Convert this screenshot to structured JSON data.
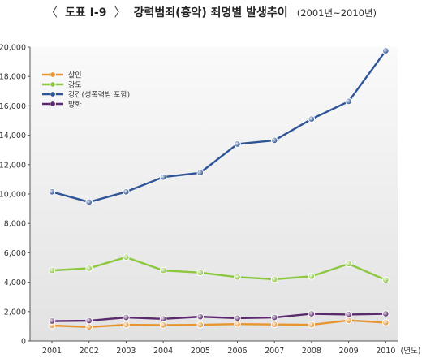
{
  "header": {
    "bracket_open": "〈",
    "figure_no": "도표 Ⅰ-9",
    "bracket_close": "〉",
    "title": "강력범죄(흉악) 죄명별 발생추이",
    "subtitle": "(2001년~2010년)"
  },
  "chart_data": {
    "type": "line",
    "title": "강력범죄(흉악) 죄명별 발생추이",
    "subtitle": "(2001년~2010년)",
    "xlabel": "(연도)",
    "ylabel": "",
    "x": [
      "2001",
      "2002",
      "2003",
      "2004",
      "2005",
      "2006",
      "2007",
      "2008",
      "2009",
      "2010"
    ],
    "ylim": [
      0,
      20000
    ],
    "yticks": [
      "0",
      "2,000",
      "4,000",
      "6,000",
      "8,000",
      "10,000",
      "12,000",
      "14,000",
      "16,000",
      "18,000",
      "20,000"
    ],
    "grid": false,
    "legend_position": "top-left",
    "series": [
      {
        "name": "살인",
        "color": "#E8952F",
        "values": [
          1050,
          950,
          1100,
          1080,
          1100,
          1150,
          1120,
          1100,
          1400,
          1250
        ]
      },
      {
        "name": "강도",
        "color": "#8DC63F",
        "values": [
          4800,
          4950,
          5700,
          4800,
          4650,
          4350,
          4200,
          4400,
          5250,
          4150
        ]
      },
      {
        "name": "강간(성폭력범 포함)",
        "color": "#2E5597",
        "values": [
          10150,
          9450,
          10150,
          11150,
          11450,
          13400,
          13650,
          15100,
          16300,
          19750
        ]
      },
      {
        "name": "방화",
        "color": "#5B2A6E",
        "values": [
          1350,
          1380,
          1600,
          1500,
          1650,
          1550,
          1600,
          1850,
          1800,
          1850
        ]
      }
    ],
    "background": "#E9E9EA"
  }
}
